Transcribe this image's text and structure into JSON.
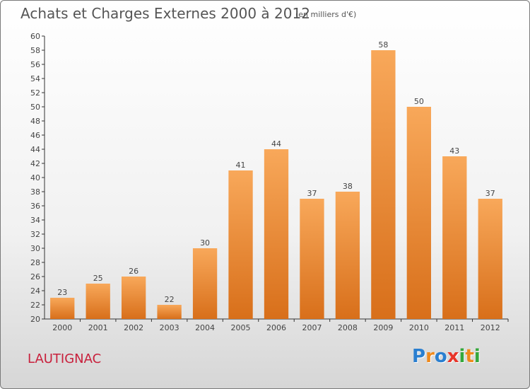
{
  "title": "Achats et Charges Externes 2000 à 2012",
  "subtitle": "(en milliers d'€)",
  "commune": "LAUTIGNAC",
  "logo": {
    "letters": [
      "P",
      "r",
      "o",
      "x",
      "i",
      "t",
      "i"
    ],
    "colors": [
      "#2a7fd0",
      "#f08a1c",
      "#2a7fd0",
      "#e8352a",
      "#35a83c",
      "#f08a1c",
      "#35a83c"
    ]
  },
  "colors": {
    "bar_top": "#f8a85a",
    "bar_bottom": "#d86f1a",
    "axis": "#333333",
    "grid": "#cccccc"
  },
  "chart_data": {
    "type": "bar",
    "title": "Achats et Charges Externes 2000 à 2012",
    "subtitle": "(en milliers d'€)",
    "xlabel": "",
    "ylabel": "",
    "categories": [
      "2000",
      "2001",
      "2002",
      "2003",
      "2004",
      "2005",
      "2006",
      "2007",
      "2008",
      "2009",
      "2010",
      "2011",
      "2012"
    ],
    "values": [
      23,
      25,
      26,
      22,
      30,
      41,
      44,
      37,
      38,
      58,
      50,
      43,
      37
    ],
    "ylim": [
      20,
      60
    ],
    "ytick_step": 2,
    "grid": false,
    "legend": "none"
  }
}
